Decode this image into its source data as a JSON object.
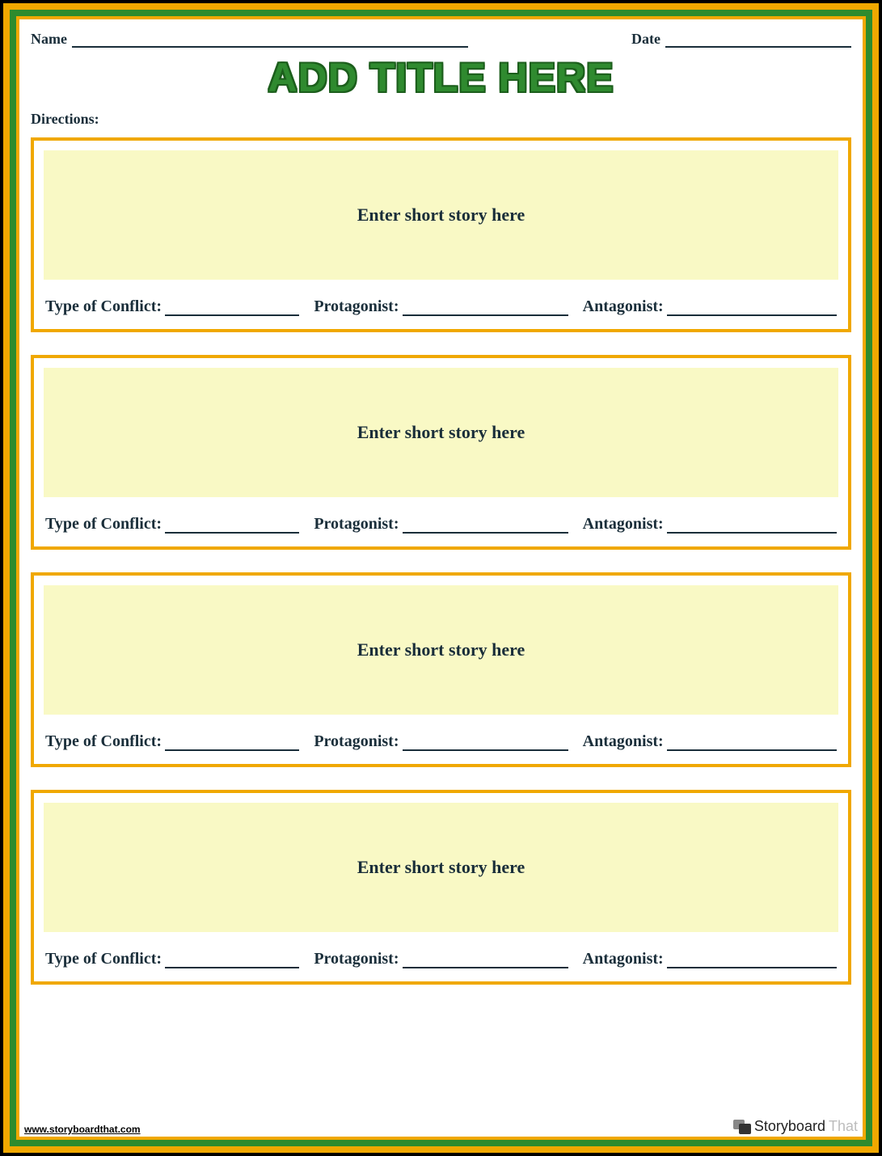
{
  "colors": {
    "outer_border": "#f0a800",
    "green_border": "#2e8b2e",
    "inner_border": "#f0a800",
    "card_border": "#f0a800",
    "story_bg": "#f9f9c5",
    "text": "#1a2e3a",
    "title_fill": "#2f8a2f",
    "title_stroke": "#1c5e1c",
    "page_bg": "#ffffff",
    "outer_bg": "#000000"
  },
  "header": {
    "name_label": "Name",
    "date_label": "Date"
  },
  "title": "ADD TITLE HERE",
  "directions_label": "Directions:",
  "card_labels": {
    "story_placeholder": "Enter short story here",
    "conflict": "Type of Conflict:",
    "protagonist": "Protagonist:",
    "antagonist": "Antagonist:"
  },
  "cards": [
    {
      "story": "Enter short story here"
    },
    {
      "story": "Enter short story here"
    },
    {
      "story": "Enter short story here"
    },
    {
      "story": "Enter short story here"
    }
  ],
  "footer": {
    "url": "www.storyboardthat.com",
    "logo_text_1": "Storyboard",
    "logo_text_2": "That"
  }
}
